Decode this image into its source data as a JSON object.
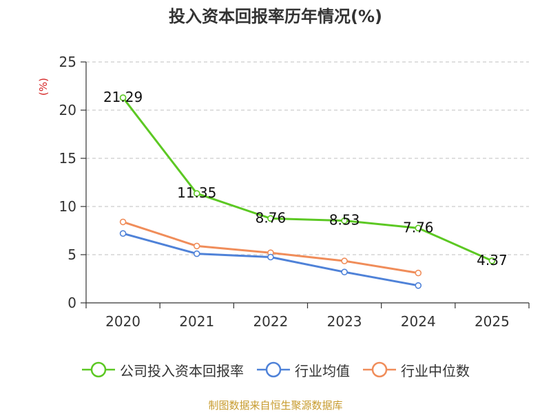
{
  "chart_data": {
    "type": "line",
    "title": "投入资本回报率历年情况(%)",
    "ylabel": "(%)",
    "xlabel": "",
    "categories": [
      "2020",
      "2021",
      "2022",
      "2023",
      "2024",
      "2025"
    ],
    "ylim": [
      0,
      25
    ],
    "yticks": [
      0,
      5,
      10,
      15,
      20,
      25
    ],
    "grid": true,
    "legend_position": "bottom",
    "series": [
      {
        "name": "公司投入资本回报率",
        "color": "#5cc823",
        "values": [
          21.29,
          11.35,
          8.76,
          8.53,
          7.76,
          4.37
        ],
        "labels": [
          "21.29",
          "11.35",
          "8.76",
          "8.53",
          "7.76",
          "4.37"
        ]
      },
      {
        "name": "行业均值",
        "color": "#4f82d8",
        "values": [
          7.2,
          5.1,
          4.75,
          3.2,
          1.8,
          null
        ]
      },
      {
        "name": "行业中位数",
        "color": "#f08d5a",
        "values": [
          8.4,
          5.9,
          5.2,
          4.35,
          3.1,
          null
        ]
      }
    ]
  },
  "source": "制图数据来自恒生聚源数据库"
}
